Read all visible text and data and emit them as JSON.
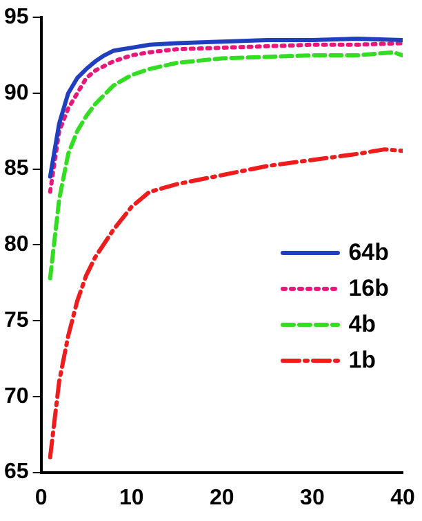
{
  "chart_data": {
    "type": "line",
    "xlim": [
      0,
      40
    ],
    "xticks": [
      0,
      10,
      20,
      30,
      40
    ],
    "ylim": [
      65,
      95
    ],
    "yticks": [
      65,
      70,
      75,
      80,
      85,
      90,
      95
    ],
    "grid": false,
    "legend": "right",
    "marker": "none",
    "series": [
      {
        "name": "64b",
        "color": "#1f3fbf",
        "line_style": "solid",
        "x": [
          1,
          2,
          3,
          4,
          5,
          6,
          7,
          8,
          9,
          10,
          12,
          15,
          20,
          25,
          30,
          35,
          40
        ],
        "values": [
          84.5,
          88,
          90,
          91,
          91.6,
          92.1,
          92.5,
          92.8,
          92.9,
          93,
          93.2,
          93.3,
          93.4,
          93.5,
          93.5,
          93.6,
          93.5
        ]
      },
      {
        "name": "16b",
        "color": "#e8177a",
        "line_style": "dotted",
        "x": [
          1,
          2,
          3,
          4,
          5,
          6,
          8,
          10,
          12,
          15,
          20,
          25,
          30,
          35,
          40
        ],
        "values": [
          83.5,
          87.5,
          89,
          90,
          91,
          91.5,
          92.1,
          92.5,
          92.7,
          92.9,
          93,
          93.1,
          93.2,
          93.2,
          93.3
        ]
      },
      {
        "name": "4b",
        "color": "#33dd22",
        "line_style": "dashed",
        "x": [
          1,
          2,
          3,
          4,
          5,
          6,
          8,
          10,
          12,
          15,
          20,
          25,
          30,
          35,
          39,
          40
        ],
        "values": [
          77.8,
          83,
          86,
          87.5,
          88.5,
          89.3,
          90.5,
          91.2,
          91.6,
          92,
          92.3,
          92.4,
          92.5,
          92.5,
          92.7,
          92.5
        ]
      },
      {
        "name": "1b",
        "color": "#ee1c1c",
        "line_style": "dashdot",
        "x": [
          1,
          2,
          3,
          4,
          5,
          6,
          8,
          10,
          12,
          15,
          20,
          25,
          30,
          35,
          38,
          40
        ],
        "values": [
          66,
          71,
          74,
          76.3,
          78,
          79.2,
          81,
          82.5,
          83.5,
          84,
          84.6,
          85.2,
          85.6,
          86,
          86.3,
          86.2
        ]
      }
    ]
  }
}
